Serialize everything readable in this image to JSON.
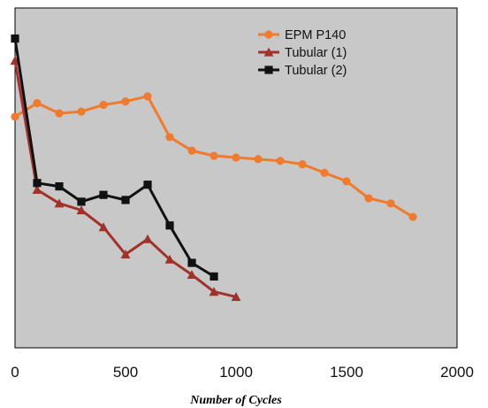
{
  "chart_data": {
    "type": "line",
    "xlabel": "Number of Cycles",
    "ylabel": "",
    "xlim": [
      0,
      2000
    ],
    "ylim": [
      0,
      100
    ],
    "x_ticks": [
      "0",
      "500",
      "1000",
      "1500",
      "2000"
    ],
    "grid": false,
    "legend_position": "top-right",
    "plot_background": "#c8c8c8",
    "series": [
      {
        "name": "EPM P140",
        "color": "#f07b2e",
        "marker": "circle",
        "x": [
          0,
          100,
          200,
          300,
          400,
          500,
          600,
          700,
          800,
          900,
          1000,
          1100,
          1200,
          1300,
          1400,
          1500,
          1600,
          1700,
          1800
        ],
        "y": [
          68,
          72,
          69,
          69.5,
          71.5,
          72.5,
          74,
          62,
          58,
          56.5,
          56,
          55.5,
          55,
          54,
          51.5,
          49,
          44,
          42.5,
          38.5
        ]
      },
      {
        "name": "Tubular (1)",
        "color": "#a0322b",
        "marker": "triangle",
        "x": [
          0,
          100,
          200,
          300,
          400,
          500,
          600,
          700,
          800,
          900,
          1000
        ],
        "y": [
          84.5,
          46.5,
          42.5,
          40.5,
          35.5,
          27.5,
          32,
          26,
          21.5,
          16.5,
          15
        ]
      },
      {
        "name": "Tubular (2)",
        "color": "#111111",
        "marker": "square",
        "x": [
          0,
          100,
          200,
          300,
          400,
          500,
          600,
          700,
          800,
          900
        ],
        "y": [
          91,
          48.5,
          47.5,
          43,
          45,
          43.5,
          48,
          36,
          25,
          21
        ]
      }
    ]
  }
}
